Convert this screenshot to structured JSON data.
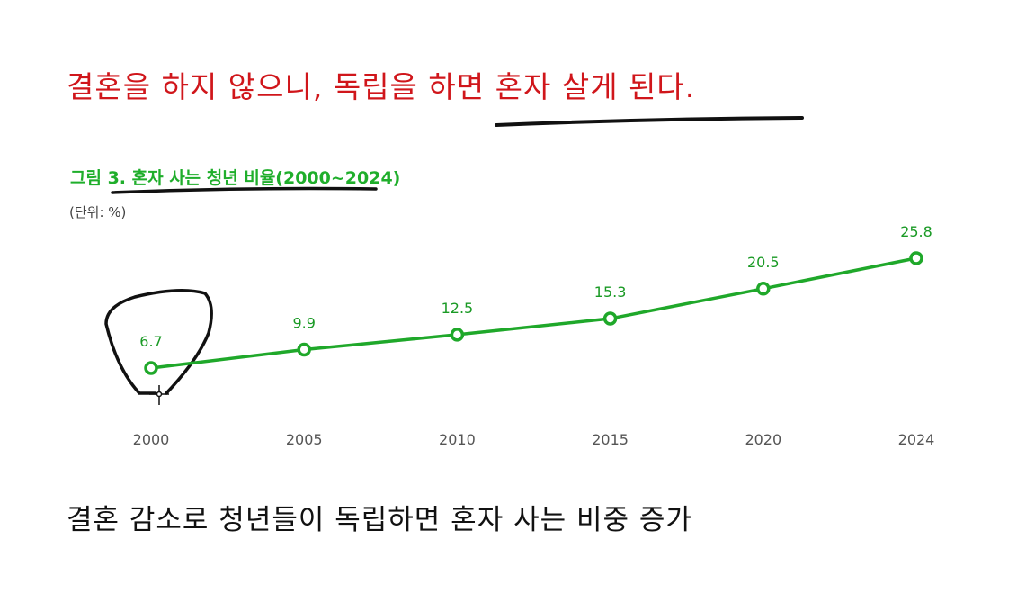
{
  "headline": "결혼을 하지 않으니, 독립을 하면 혼자 살게 된다.",
  "caption": "결혼 감소로 청년들이 독립하면 혼자 사는 비중 증가",
  "colors": {
    "line": "#1fa82a",
    "headline": "#d0161b",
    "title": "#1fae2b"
  },
  "chart_data": {
    "type": "line",
    "title": "그림 3. 혼자 사는 청년 비율(2000~2024)",
    "unit_label": "(단위: %)",
    "categories": [
      "2000",
      "2005",
      "2010",
      "2015",
      "2020",
      "2024"
    ],
    "values": [
      6.7,
      9.9,
      12.5,
      15.3,
      20.5,
      25.8
    ],
    "data_labels": [
      "6.7",
      "9.9",
      "12.5",
      "15.3",
      "20.5",
      "25.8"
    ],
    "xlabel": "",
    "ylabel": "",
    "grid": false
  }
}
